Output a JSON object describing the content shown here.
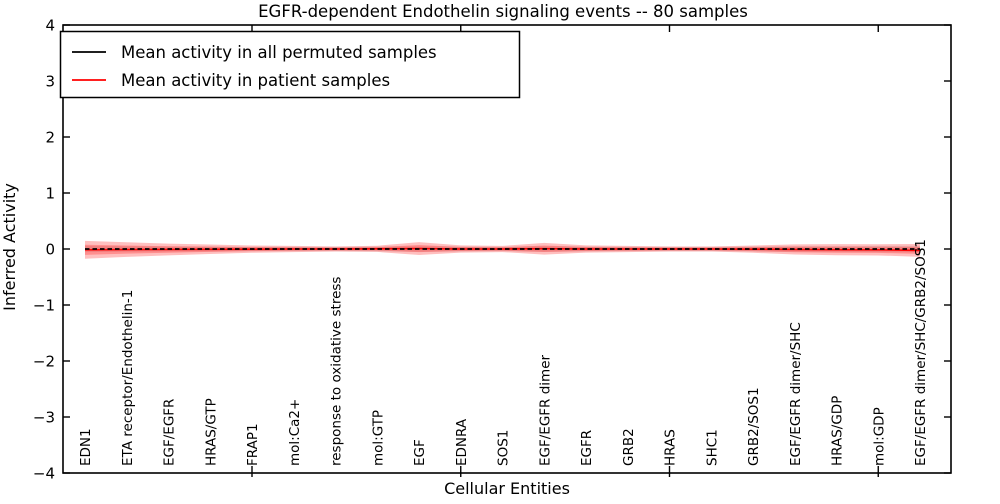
{
  "figure": {
    "background": "#ffffff"
  },
  "chart_data": {
    "type": "line",
    "title": "EGFR-dependent Endothelin signaling events -- 80 samples",
    "xlabel": "Cellular Entities",
    "ylabel": "Inferred Activity",
    "ylim": [
      -4,
      4
    ],
    "grid": false,
    "yticks": {
      "values": [
        4,
        3,
        2,
        1,
        0,
        -1,
        -2,
        -3,
        -4
      ],
      "labels": [
        "4",
        "3",
        "2",
        "1",
        "0",
        "−1",
        "−2",
        "−3",
        "−4"
      ]
    },
    "x_major_tick_indices": [
      4,
      9,
      14,
      19
    ],
    "categories": [
      "EDN1",
      "ETA receptor/Endothelin-1",
      "EGF/EGFR",
      "HRAS/GTP",
      "FRAP1",
      "mol:Ca2+",
      "response to oxidative stress",
      "mol:GTP",
      "EGF",
      "EDNRA",
      "SOS1",
      "EGF/EGFR dimer",
      "EGFR",
      "GRB2",
      "HRAS",
      "SHC1",
      "GRB2/SOS1",
      "EGF/EGFR dimer/SHC",
      "HRAS/GDP",
      "mol:GDP",
      "EGF/EGFR dimer/SHC/GRB2/SOS1"
    ],
    "series": [
      {
        "name": "Mean activity in all permuted samples",
        "color": "#000000",
        "style": "dashed",
        "values": [
          0,
          0,
          0,
          0,
          0,
          0,
          0,
          0,
          0,
          0,
          0,
          0,
          0,
          0,
          0,
          0,
          0,
          0,
          0,
          0,
          0
        ],
        "band": {
          "color": "rgba(0,0,0,0.10)",
          "half_widths": [
            0.055,
            0.05,
            0.045,
            0.045,
            0.04,
            0.04,
            0.04,
            0.045,
            0.05,
            0.045,
            0.04,
            0.05,
            0.045,
            0.04,
            0.04,
            0.04,
            0.045,
            0.05,
            0.05,
            0.055,
            0.055
          ]
        }
      },
      {
        "name": "Mean activity in patient samples",
        "color": "#ff0000",
        "style": "solid",
        "values": [
          -0.015,
          -0.01,
          -0.008,
          -0.005,
          -0.003,
          0,
          0,
          0.003,
          0.008,
          0,
          0,
          0.005,
          0,
          0,
          0,
          0,
          -0.003,
          -0.008,
          -0.012,
          -0.015,
          -0.025
        ],
        "band": {
          "color": "rgba(255,0,0,0.25)",
          "half_widths": [
            0.16,
            0.13,
            0.105,
            0.085,
            0.065,
            0.055,
            0.045,
            0.055,
            0.115,
            0.065,
            0.055,
            0.105,
            0.065,
            0.055,
            0.045,
            0.045,
            0.065,
            0.09,
            0.1,
            0.1,
            0.115
          ]
        },
        "inner_band": {
          "color": "rgba(255,0,0,0.25)",
          "half_widths": [
            0.09,
            0.072,
            0.058,
            0.047,
            0.036,
            0.03,
            0.025,
            0.03,
            0.063,
            0.036,
            0.03,
            0.058,
            0.036,
            0.03,
            0.025,
            0.025,
            0.036,
            0.05,
            0.055,
            0.055,
            0.063
          ]
        }
      }
    ],
    "legend": {
      "position": "upper left",
      "entries": [
        {
          "label": "Mean activity in all permuted samples",
          "color": "#000000"
        },
        {
          "label": "Mean activity in patient samples",
          "color": "#ff0000"
        }
      ]
    }
  }
}
